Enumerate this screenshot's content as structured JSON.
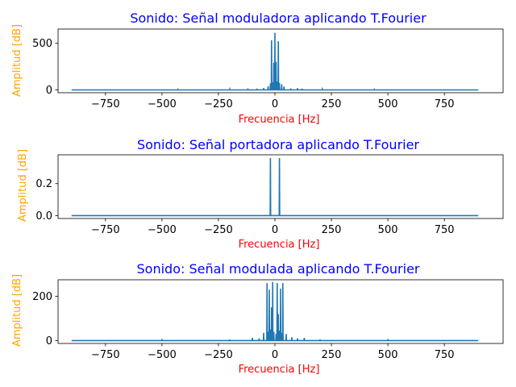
{
  "colors": {
    "title": "#0000ff",
    "xlabel": "#ff0000",
    "ylabel": "#ffa500",
    "line": "#1f77b4",
    "axes": "#000000"
  },
  "chart_data": [
    {
      "type": "line",
      "title": "Sonido: Señal moduladora aplicando T.Fourier",
      "xlabel": "Frecuencia [Hz]",
      "ylabel": "Amplitud [dB]",
      "xlim": [
        -960,
        1010
      ],
      "ylim": [
        -30,
        650
      ],
      "xticks": [
        -750,
        -500,
        -250,
        0,
        250,
        500,
        750
      ],
      "xtick_labels": [
        "−750",
        "−500",
        "−250",
        "0",
        "250",
        "500",
        "750"
      ],
      "yticks": [
        0,
        500
      ],
      "ytick_labels": [
        "0",
        "500"
      ],
      "x_range": [
        -900,
        900
      ],
      "baseline": 0,
      "peaks": [
        [
          -30,
          40
        ],
        [
          -20,
          70
        ],
        [
          -15,
          530
        ],
        [
          -10,
          80
        ],
        [
          -5,
          290
        ],
        [
          0,
          610
        ],
        [
          5,
          300
        ],
        [
          10,
          90
        ],
        [
          15,
          520
        ],
        [
          20,
          75
        ],
        [
          30,
          60
        ],
        [
          40,
          35
        ],
        [
          -120,
          15
        ],
        [
          -80,
          12
        ],
        [
          -50,
          20
        ],
        [
          70,
          15
        ],
        [
          100,
          18
        ],
        [
          120,
          12
        ],
        [
          -200,
          8
        ],
        [
          210,
          8
        ],
        [
          -430,
          5
        ],
        [
          440,
          5
        ]
      ]
    },
    {
      "type": "line",
      "title": "Sonido: Señal portadora aplicando T.Fourier",
      "xlabel": "Frecuencia [Hz]",
      "ylabel": "Amplitud [dB]",
      "xlim": [
        -960,
        1010
      ],
      "ylim": [
        -0.018,
        0.38
      ],
      "xticks": [
        -750,
        -500,
        -250,
        0,
        250,
        500,
        750
      ],
      "xtick_labels": [
        "−750",
        "−500",
        "−250",
        "0",
        "250",
        "500",
        "750"
      ],
      "yticks": [
        0,
        0.2
      ],
      "ytick_labels": [
        "0.0",
        "0.2"
      ],
      "x_range": [
        -900,
        900
      ],
      "baseline": 0,
      "peaks": [
        [
          -20,
          0.36
        ],
        [
          20,
          0.36
        ]
      ]
    },
    {
      "type": "line",
      "title": "Sonido: Señal modulada aplicando T.Fourier",
      "xlabel": "Frecuencia [Hz]",
      "ylabel": "Amplitud [dB]",
      "xlim": [
        -960,
        1010
      ],
      "ylim": [
        -13,
        275
      ],
      "xticks": [
        -750,
        -500,
        -250,
        0,
        250,
        500,
        750
      ],
      "xtick_labels": [
        "−750",
        "−500",
        "−250",
        "0",
        "250",
        "500",
        "750"
      ],
      "yticks": [
        0,
        200
      ],
      "ytick_labels": [
        "0",
        "200"
      ],
      "x_range": [
        -900,
        900
      ],
      "baseline": 0,
      "peaks": [
        [
          -35,
          260
        ],
        [
          -30,
          40
        ],
        [
          -25,
          230
        ],
        [
          -20,
          50
        ],
        [
          -15,
          150
        ],
        [
          -10,
          265
        ],
        [
          -5,
          40
        ],
        [
          5,
          30
        ],
        [
          10,
          260
        ],
        [
          15,
          120
        ],
        [
          20,
          45
        ],
        [
          25,
          235
        ],
        [
          30,
          35
        ],
        [
          35,
          260
        ],
        [
          -50,
          35
        ],
        [
          50,
          30
        ],
        [
          -100,
          12
        ],
        [
          -70,
          10
        ],
        [
          75,
          15
        ],
        [
          100,
          10
        ],
        [
          130,
          12
        ],
        [
          -200,
          5
        ],
        [
          200,
          5
        ],
        [
          -500,
          3
        ],
        [
          500,
          3
        ]
      ]
    }
  ]
}
